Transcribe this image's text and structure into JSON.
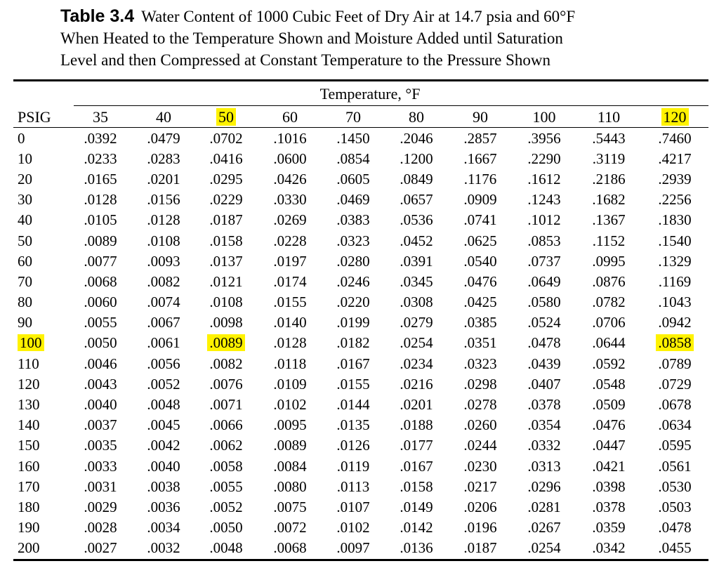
{
  "caption": {
    "label": "Table 3.4",
    "line1": "Water Content of 1000 Cubic Feet of Dry Air at 14.7 psia and 60°F",
    "line2": "When Heated to the Temperature Shown and Moisture Added until Saturation",
    "line3": "Level and then Compressed at Constant Temperature to the Pressure Shown"
  },
  "table": {
    "group_header": "Temperature, °F",
    "columns": [
      "PSIG",
      "35",
      "40",
      "50",
      "60",
      "70",
      "80",
      "90",
      "100",
      "110",
      "120"
    ],
    "highlighted_columns": [
      "50",
      "120"
    ],
    "highlight_color": "#fff200",
    "rows": [
      [
        "0",
        ".0392",
        ".0479",
        ".0702",
        ".1016",
        ".1450",
        ".2046",
        ".2857",
        ".3956",
        ".5443",
        ".7460"
      ],
      [
        "10",
        ".0233",
        ".0283",
        ".0416",
        ".0600",
        ".0854",
        ".1200",
        ".1667",
        ".2290",
        ".3119",
        ".4217"
      ],
      [
        "20",
        ".0165",
        ".0201",
        ".0295",
        ".0426",
        ".0605",
        ".0849",
        ".1176",
        ".1612",
        ".2186",
        ".2939"
      ],
      [
        "30",
        ".0128",
        ".0156",
        ".0229",
        ".0330",
        ".0469",
        ".0657",
        ".0909",
        ".1243",
        ".1682",
        ".2256"
      ],
      [
        "40",
        ".0105",
        ".0128",
        ".0187",
        ".0269",
        ".0383",
        ".0536",
        ".0741",
        ".1012",
        ".1367",
        ".1830"
      ],
      [
        "50",
        ".0089",
        ".0108",
        ".0158",
        ".0228",
        ".0323",
        ".0452",
        ".0625",
        ".0853",
        ".1152",
        ".1540"
      ],
      [
        "60",
        ".0077",
        ".0093",
        ".0137",
        ".0197",
        ".0280",
        ".0391",
        ".0540",
        ".0737",
        ".0995",
        ".1329"
      ],
      [
        "70",
        ".0068",
        ".0082",
        ".0121",
        ".0174",
        ".0246",
        ".0345",
        ".0476",
        ".0649",
        ".0876",
        ".1169"
      ],
      [
        "80",
        ".0060",
        ".0074",
        ".0108",
        ".0155",
        ".0220",
        ".0308",
        ".0425",
        ".0580",
        ".0782",
        ".1043"
      ],
      [
        "90",
        ".0055",
        ".0067",
        ".0098",
        ".0140",
        ".0199",
        ".0279",
        ".0385",
        ".0524",
        ".0706",
        ".0942"
      ],
      [
        "100",
        ".0050",
        ".0061",
        ".0089",
        ".0128",
        ".0182",
        ".0254",
        ".0351",
        ".0478",
        ".0644",
        ".0858"
      ],
      [
        "110",
        ".0046",
        ".0056",
        ".0082",
        ".0118",
        ".0167",
        ".0234",
        ".0323",
        ".0439",
        ".0592",
        ".0789"
      ],
      [
        "120",
        ".0043",
        ".0052",
        ".0076",
        ".0109",
        ".0155",
        ".0216",
        ".0298",
        ".0407",
        ".0548",
        ".0729"
      ],
      [
        "130",
        ".0040",
        ".0048",
        ".0071",
        ".0102",
        ".0144",
        ".0201",
        ".0278",
        ".0378",
        ".0509",
        ".0678"
      ],
      [
        "140",
        ".0037",
        ".0045",
        ".0066",
        ".0095",
        ".0135",
        ".0188",
        ".0260",
        ".0354",
        ".0476",
        ".0634"
      ],
      [
        "150",
        ".0035",
        ".0042",
        ".0062",
        ".0089",
        ".0126",
        ".0177",
        ".0244",
        ".0332",
        ".0447",
        ".0595"
      ],
      [
        "160",
        ".0033",
        ".0040",
        ".0058",
        ".0084",
        ".0119",
        ".0167",
        ".0230",
        ".0313",
        ".0421",
        ".0561"
      ],
      [
        "170",
        ".0031",
        ".0038",
        ".0055",
        ".0080",
        ".0113",
        ".0158",
        ".0217",
        ".0296",
        ".0398",
        ".0530"
      ],
      [
        "180",
        ".0029",
        ".0036",
        ".0052",
        ".0075",
        ".0107",
        ".0149",
        ".0206",
        ".0281",
        ".0378",
        ".0503"
      ],
      [
        "190",
        ".0028",
        ".0034",
        ".0050",
        ".0072",
        ".0102",
        ".0142",
        ".0196",
        ".0267",
        ".0359",
        ".0478"
      ],
      [
        "200",
        ".0027",
        ".0032",
        ".0048",
        ".0068",
        ".0097",
        ".0136",
        ".0187",
        ".0254",
        ".0342",
        ".0455"
      ]
    ],
    "highlighted_cells": [
      {
        "row": "100",
        "column": "PSIG"
      },
      {
        "row": "100",
        "column": "50"
      },
      {
        "row": "100",
        "column": "120"
      }
    ]
  }
}
